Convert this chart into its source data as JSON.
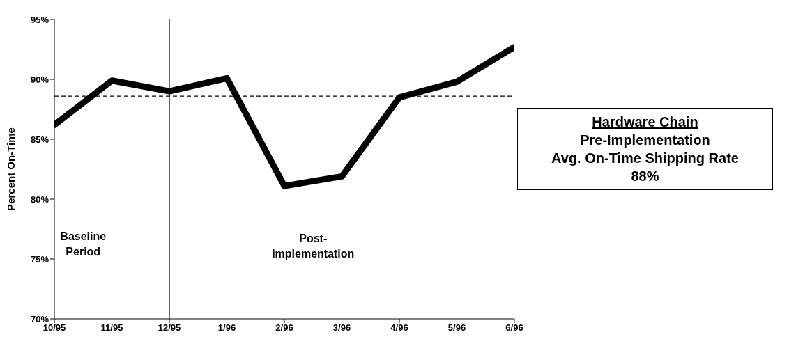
{
  "chart_data": {
    "type": "line",
    "ylabel": "Percent On-Time",
    "categories": [
      "10/95",
      "11/95",
      "12/95",
      "1/96",
      "2/96",
      "3/96",
      "4/96",
      "5/96",
      "6/96"
    ],
    "series": [
      {
        "color": "#000000",
        "values": [
          86.2,
          89.9,
          89.0,
          90.1,
          81.1,
          81.9,
          88.5,
          89.8,
          92.7
        ]
      }
    ],
    "ylim": [
      70,
      95
    ],
    "yticks": [
      {
        "value": 70,
        "label": "70%"
      },
      {
        "value": 75,
        "label": "75%"
      },
      {
        "value": 80,
        "label": "80%"
      },
      {
        "value": 85,
        "label": "85%"
      },
      {
        "value": 90,
        "label": "90%"
      },
      {
        "value": 95,
        "label": "95%"
      }
    ],
    "ref_lines": [
      {
        "axis": "y",
        "value": 88.6,
        "color": "#000000",
        "line_style": "dashed"
      },
      {
        "axis": "x",
        "value": "12/95",
        "color": "#000000",
        "line_style": "solid"
      }
    ],
    "annotations": [
      "Baseline\nPeriod",
      "Post-\nImplementation",
      "Hardware Chain\nPre-Implementation\nAvg. On-Time Shipping Rate\n88%"
    ],
    "grid": false,
    "legend": false,
    "marker": "none",
    "line_style": "solid"
  }
}
